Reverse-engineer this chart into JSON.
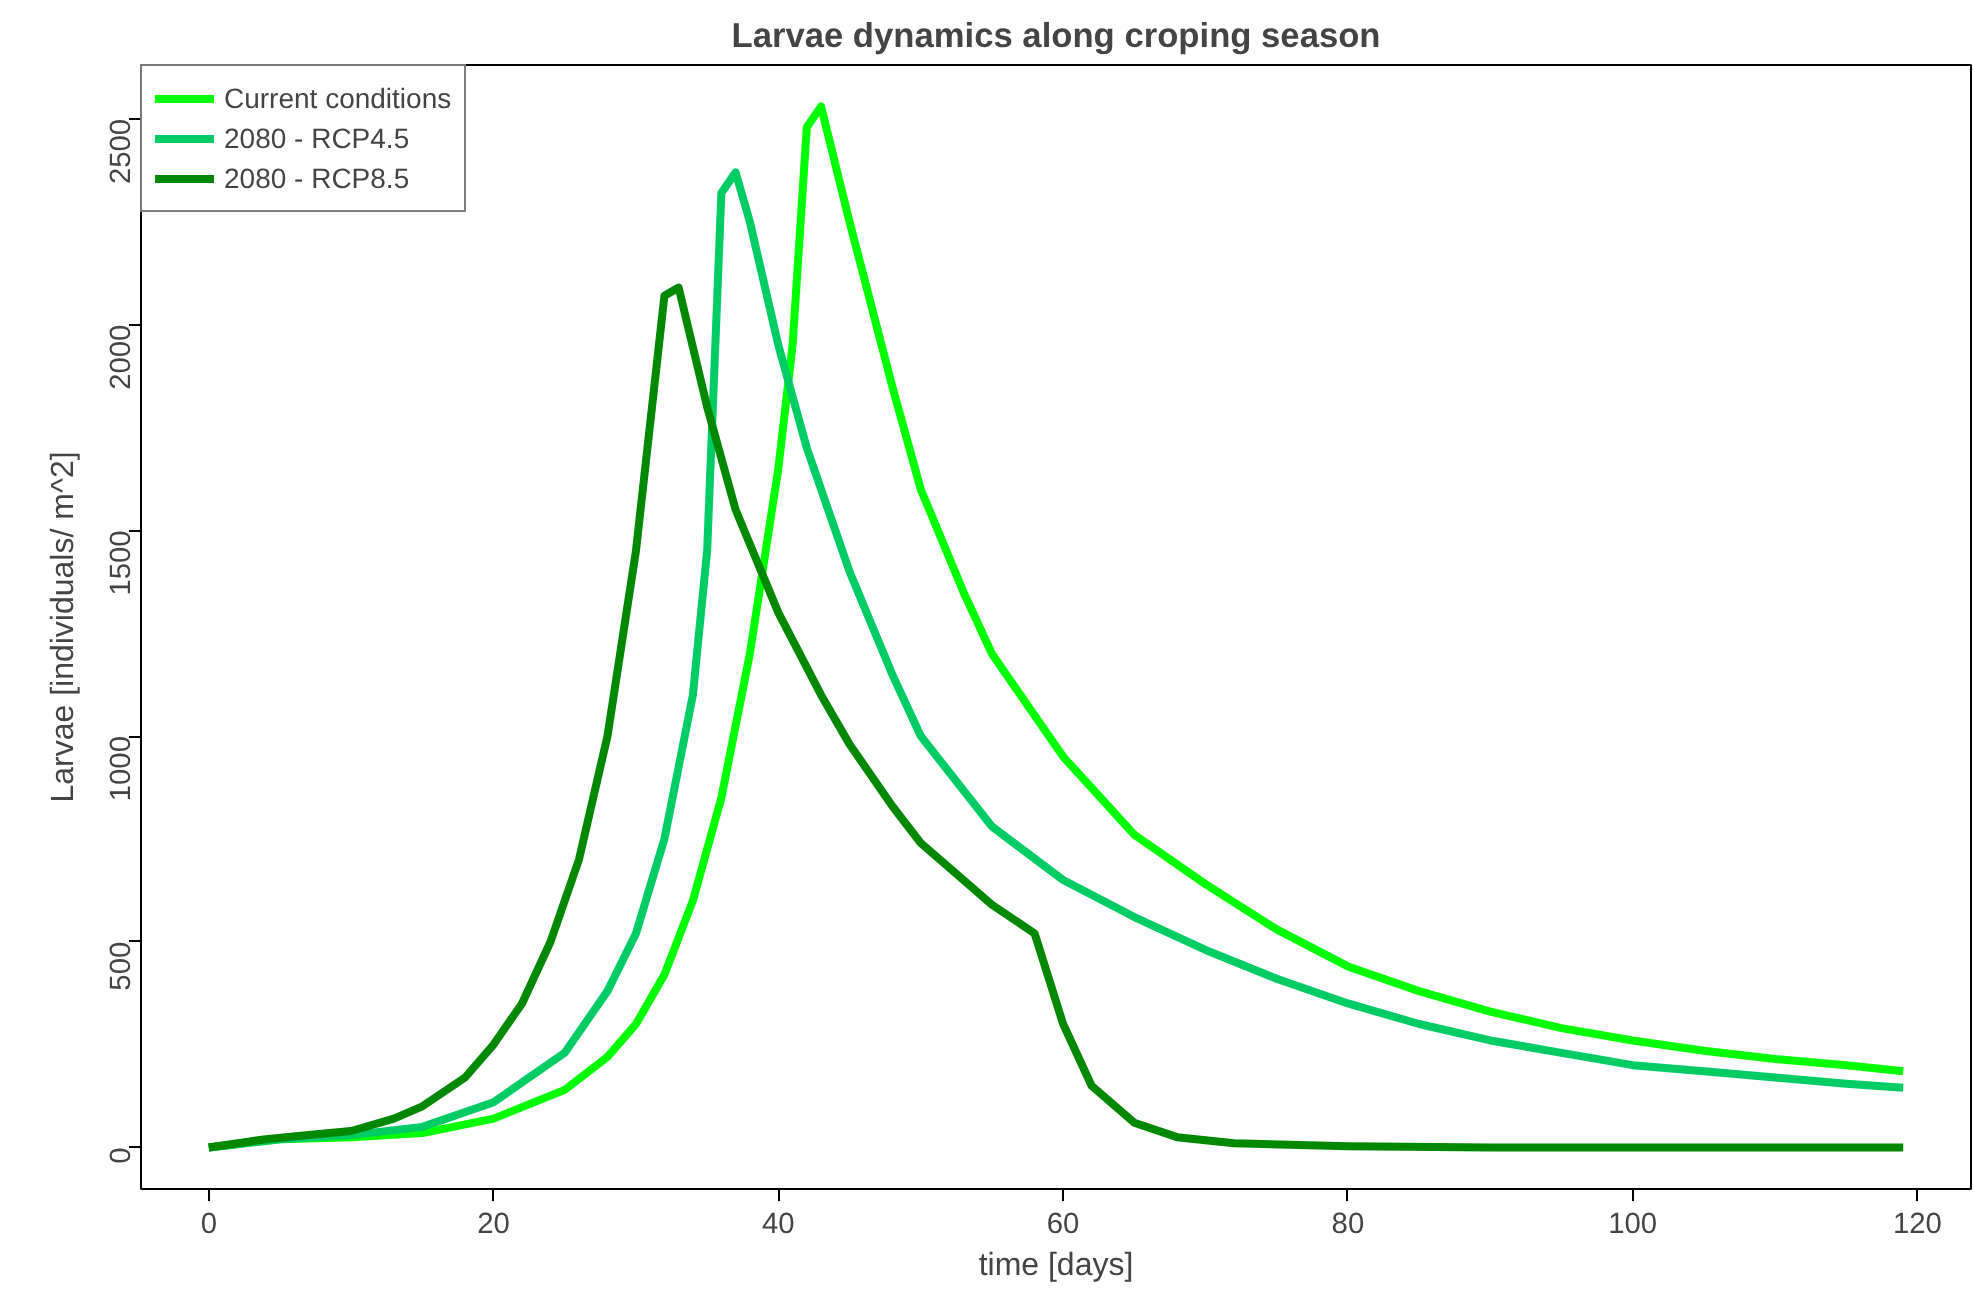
{
  "chart_data": {
    "type": "line",
    "title": "Larvae dynamics along croping season",
    "xlabel": "time [days]",
    "ylabel": "Larvae [individuals/ m^2]",
    "xlim": [
      -4.76,
      123.76
    ],
    "ylim": [
      -101,
      2631
    ],
    "xticks": [
      0,
      20,
      40,
      60,
      80,
      100,
      120
    ],
    "yticks": [
      0,
      500,
      1000,
      1500,
      2000,
      2500
    ],
    "grid": false,
    "legend": "top left",
    "marker": "none",
    "line_style": "solid",
    "series": [
      {
        "name": "Current conditions",
        "color": "#00ff00",
        "x": [
          0,
          5,
          10,
          15,
          20,
          25,
          28,
          30,
          32,
          34,
          36,
          38,
          40,
          41,
          42,
          43,
          45,
          48,
          50,
          53,
          55,
          58,
          60,
          65,
          70,
          75,
          80,
          85,
          90,
          95,
          100,
          105,
          110,
          115,
          119
        ],
        "values": [
          0,
          20,
          25,
          35,
          70,
          140,
          220,
          300,
          420,
          600,
          850,
          1200,
          1650,
          1950,
          2480,
          2530,
          2250,
          1850,
          1600,
          1350,
          1200,
          1050,
          950,
          760,
          640,
          530,
          440,
          380,
          330,
          290,
          260,
          235,
          215,
          200,
          185
        ]
      },
      {
        "name": "2080 - RCP4.5",
        "color": "#00cc66",
        "x": [
          0,
          5,
          10,
          15,
          20,
          25,
          28,
          30,
          32,
          34,
          35,
          36,
          37,
          38,
          40,
          42,
          45,
          48,
          50,
          55,
          60,
          65,
          70,
          75,
          80,
          85,
          90,
          95,
          100,
          105,
          110,
          115,
          119
        ],
        "values": [
          0,
          20,
          30,
          50,
          110,
          230,
          380,
          520,
          750,
          1100,
          1450,
          2320,
          2370,
          2250,
          1950,
          1700,
          1400,
          1150,
          1000,
          780,
          650,
          560,
          480,
          410,
          350,
          300,
          260,
          230,
          200,
          185,
          170,
          155,
          145
        ]
      },
      {
        "name": "2080 - RCP8.5",
        "color": "#008800",
        "x": [
          0,
          4,
          7,
          10,
          13,
          15,
          18,
          20,
          22,
          24,
          26,
          28,
          30,
          32,
          33,
          35,
          37,
          40,
          43,
          45,
          48,
          50,
          53,
          55,
          58,
          60,
          62,
          65,
          68,
          72,
          80,
          90,
          100,
          119
        ],
        "values": [
          0,
          20,
          30,
          40,
          70,
          100,
          170,
          250,
          350,
          500,
          700,
          1000,
          1450,
          2070,
          2090,
          1800,
          1550,
          1300,
          1100,
          980,
          830,
          740,
          650,
          590,
          520,
          300,
          150,
          60,
          25,
          10,
          3,
          0,
          0,
          0
        ]
      }
    ]
  }
}
